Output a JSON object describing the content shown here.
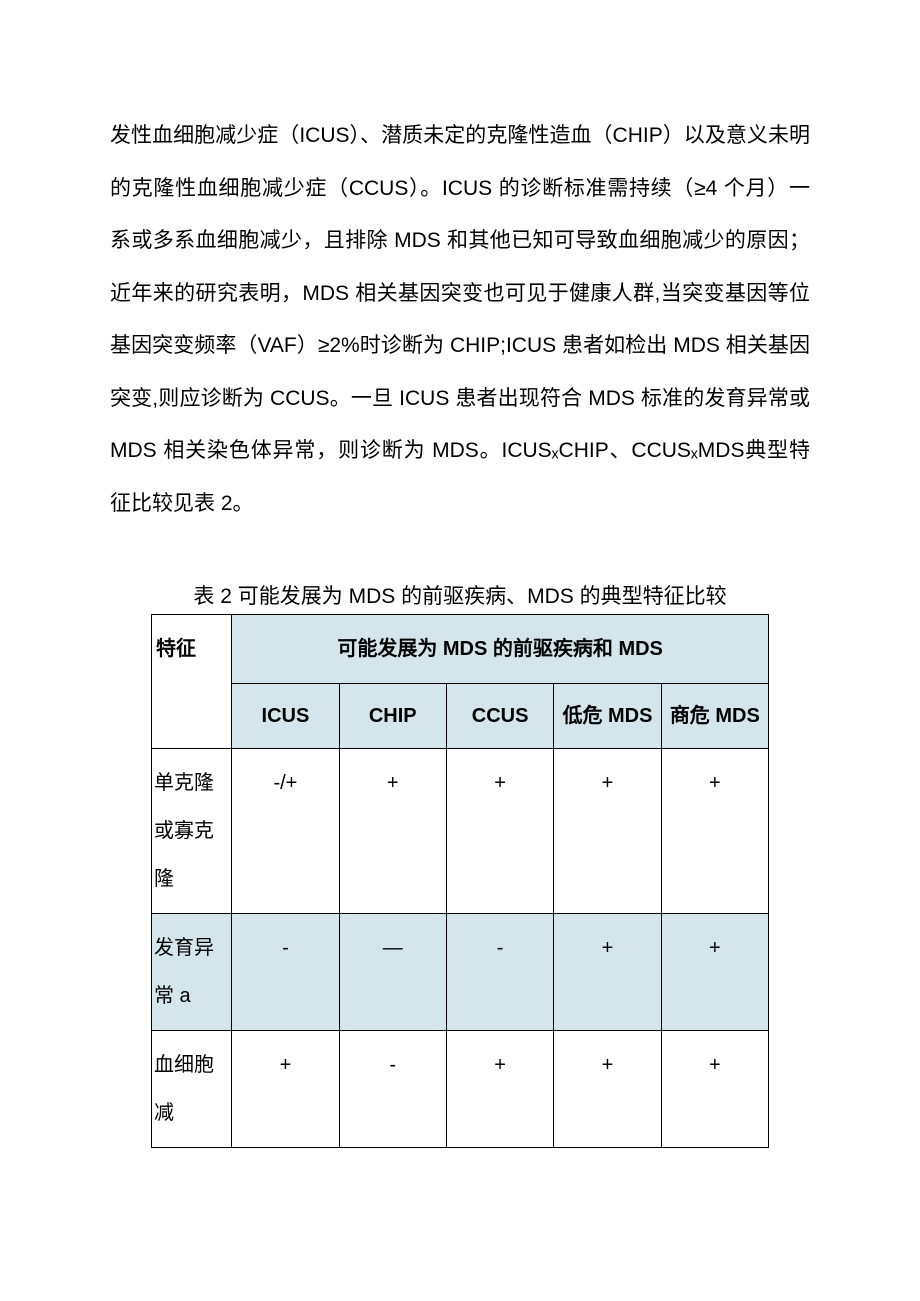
{
  "paragraph": "发性血细胞减少症（ICUS）、潜质未定的克隆性造血（CHIP）以及意义未明的克隆性血细胞减少症（CCUS）。ICUS 的诊断标准需持续（≥4 个月）一系或多系血细胞减少，且排除 MDS 和其他已知可导致血细胞减少的原因；近年来的研究表明，MDS 相关基因突变也可见于健康人群,当突变基因等位基因突变频率（VAF）≥2%时诊断为 CHIP;ICUS 患者如检出 MDS 相关基因突变,则应诊断为 CCUS。一旦 ICUS 患者出现符合 MDS 标准的发育异常或 MDS 相关染色体异常，则诊断为 MDS。ICUSₓCHIP、CCUSₓMDS典型特征比较见表 2。",
  "table": {
    "caption": "表 2 可能发展为 MDS 的前驱疾病、MDS 的典型特征比较",
    "header_feature": "特征",
    "header_group": "可能发展为 MDS 的前驱疾病和 MDS",
    "subheaders": [
      "ICUS",
      "CHIP",
      "CCUS",
      "低危 MDS",
      "商危 MDS"
    ],
    "rows": [
      {
        "label": "单克隆或寡克隆",
        "cells": [
          "-/+",
          "+",
          "+",
          "+",
          "+"
        ],
        "alt": false
      },
      {
        "label": "发育异常 a",
        "cells": [
          "-",
          "—",
          "-",
          "+",
          "+"
        ],
        "alt": true
      },
      {
        "label": "血细胞减",
        "cells": [
          "+",
          "-",
          "+",
          "+",
          "+"
        ],
        "alt": false
      }
    ]
  },
  "style": {
    "header_bg": "#d4e6eb",
    "text_color": "#000000",
    "border_color": "#000000"
  }
}
